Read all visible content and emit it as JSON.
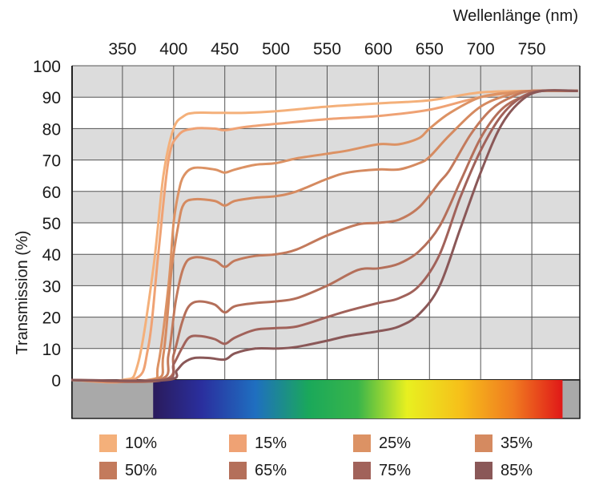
{
  "chart_data": {
    "type": "line",
    "xlabel": "Wellenlänge (nm)",
    "ylabel": "Transmission (%)",
    "xlim": [
      300,
      800
    ],
    "ylim": [
      0,
      100
    ],
    "x_ticks": [
      "350",
      "400",
      "450",
      "500",
      "550",
      "600",
      "650",
      "700",
      "750"
    ],
    "y_ticks": [
      "0",
      "10",
      "20",
      "30",
      "40",
      "50",
      "60",
      "70",
      "80",
      "90",
      "100"
    ],
    "grid": true,
    "legend_position": "bottom",
    "spectrum_band": {
      "start_nm": 380,
      "end_nm": 780
    },
    "series": [
      {
        "name": "10%",
        "color": "#f4b07a",
        "x": [
          300,
          350,
          365,
          380,
          390,
          400,
          410,
          420,
          440,
          450,
          470,
          500,
          550,
          600,
          650,
          700,
          750,
          795
        ],
        "y": [
          0,
          0,
          5,
          35,
          65,
          80,
          84,
          85,
          85,
          85,
          85,
          85.5,
          87,
          88,
          89,
          91.5,
          92,
          92
        ]
      },
      {
        "name": "15%",
        "color": "#efa274",
        "x": [
          300,
          360,
          375,
          385,
          395,
          405,
          420,
          440,
          450,
          470,
          500,
          550,
          600,
          650,
          700,
          750,
          795
        ],
        "y": [
          0,
          0,
          10,
          40,
          70,
          78,
          80,
          80,
          79.5,
          80.5,
          81.5,
          83,
          84,
          86,
          90,
          92,
          92
        ]
      },
      {
        "name": "25%",
        "color": "#dc9264",
        "x": [
          300,
          375,
          385,
          395,
          400,
          405,
          410,
          420,
          440,
          450,
          460,
          480,
          500,
          520,
          550,
          570,
          600,
          620,
          640,
          650,
          670,
          700,
          730,
          750,
          795
        ],
        "y": [
          0,
          0,
          5,
          30,
          50,
          60,
          65,
          67.5,
          67,
          66,
          67,
          68.5,
          69,
          70.5,
          72,
          73,
          75,
          75,
          77,
          80,
          85,
          90,
          91.5,
          92,
          92
        ]
      },
      {
        "name": "35%",
        "color": "#d58a60",
        "x": [
          300,
          380,
          390,
          398,
          405,
          410,
          420,
          440,
          450,
          460,
          480,
          500,
          520,
          550,
          570,
          600,
          620,
          640,
          650,
          670,
          700,
          730,
          750,
          795
        ],
        "y": [
          0,
          0,
          8,
          35,
          50,
          56,
          57.5,
          57,
          55.5,
          57,
          58,
          58.5,
          60,
          64,
          66,
          67,
          67,
          69,
          71,
          78,
          87,
          91,
          92,
          92
        ]
      },
      {
        "name": "50%",
        "color": "#c37a5c",
        "x": [
          300,
          385,
          395,
          402,
          410,
          420,
          440,
          450,
          460,
          480,
          500,
          520,
          550,
          580,
          600,
          620,
          640,
          660,
          670,
          690,
          710,
          730,
          750,
          795
        ],
        "y": [
          0,
          0,
          8,
          25,
          36,
          39,
          38,
          36,
          38,
          39.5,
          40,
          41.5,
          46,
          49.5,
          50,
          51,
          55,
          63,
          67,
          78,
          86,
          90,
          92,
          92
        ]
      },
      {
        "name": "65%",
        "color": "#b46f5a",
        "x": [
          300,
          390,
          400,
          408,
          415,
          425,
          440,
          450,
          460,
          480,
          500,
          520,
          550,
          580,
          600,
          620,
          640,
          660,
          680,
          700,
          720,
          740,
          760,
          795
        ],
        "y": [
          0,
          0,
          8,
          18,
          23.5,
          25,
          24,
          21.5,
          23.5,
          24.5,
          25,
          26,
          30,
          35,
          35.5,
          37,
          41,
          49,
          63,
          77,
          86,
          90,
          92,
          92
        ]
      },
      {
        "name": "75%",
        "color": "#a1625a",
        "x": [
          300,
          390,
          400,
          408,
          415,
          425,
          440,
          450,
          460,
          480,
          500,
          520,
          550,
          570,
          600,
          620,
          640,
          660,
          680,
          700,
          720,
          740,
          760,
          795
        ],
        "y": [
          0,
          0,
          5,
          10,
          13.5,
          14,
          13,
          11.5,
          13.5,
          16,
          16.5,
          17,
          20,
          22,
          24.5,
          26,
          30,
          40,
          58,
          73,
          84,
          90,
          92,
          92
        ]
      },
      {
        "name": "85%",
        "color": "#8a5858",
        "x": [
          300,
          393,
          403,
          410,
          420,
          435,
          450,
          460,
          480,
          500,
          520,
          550,
          570,
          600,
          620,
          640,
          660,
          680,
          700,
          720,
          740,
          760,
          795
        ],
        "y": [
          0,
          0,
          3,
          5.5,
          7,
          7,
          6.5,
          8.5,
          10,
          10,
          10.5,
          12.5,
          14,
          15.5,
          17,
          21,
          30,
          48,
          66,
          81,
          89,
          92,
          92
        ]
      }
    ]
  }
}
